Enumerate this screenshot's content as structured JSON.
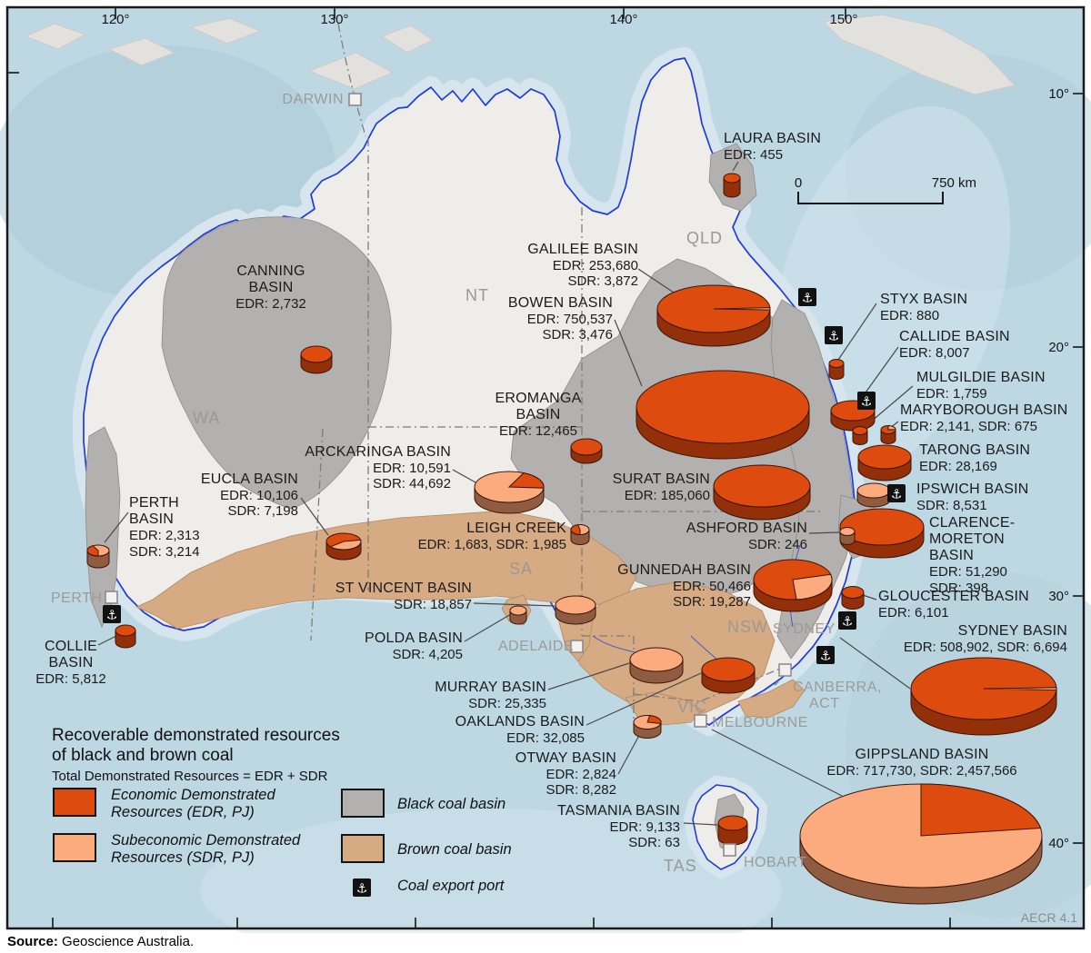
{
  "page": {
    "source_label": "Source:",
    "source_text": " Geoscience Australia.",
    "figure_ref": "AECR 4.1"
  },
  "icons": {
    "anchor": "⚓"
  },
  "colors": {
    "edr": "#dd4b0e",
    "edr_side": "#932f09",
    "sdr": "#fbab7e",
    "sdr_side": "#8f5b41",
    "pie_outline": "#3a1606",
    "black_coal": "#b3b1b0",
    "brown_coal": "#d6aa82",
    "land": "#efede9",
    "ocean": "#bed8e3",
    "coastline": "#1f3cd8"
  },
  "graticule": {
    "lon1": "120°",
    "lon2": "130°",
    "lon3": "140°",
    "lon4": "150°",
    "lat1": "10°",
    "lat2": "20°",
    "lat3": "30°",
    "lat4": "40°"
  },
  "scalebar": {
    "zero": "0",
    "max": "750 km"
  },
  "legend": {
    "title_line1": "Recoverable demonstrated resources",
    "title_line2": "of black and brown coal",
    "subtitle": "Total Demonstrated Resources = EDR + SDR",
    "edr_line1": "Economic Demonstrated",
    "edr_line2": "Resources (EDR, PJ)",
    "sdr_line1": "Subeconomic Demonstrated",
    "sdr_line2": "Resources (SDR, PJ)",
    "black_label": "Black coal basin",
    "brown_label": "Brown coal basin",
    "port_label": "Coal export port"
  },
  "states": {
    "wa": "WA",
    "nt": "NT",
    "qld": "QLD",
    "sa": "SA",
    "nsw": "NSW",
    "vic": "VIC",
    "tas": "TAS"
  },
  "cities": {
    "darwin": "DARWIN",
    "perth": "PERTH",
    "adelaide": "ADELAIDE",
    "sydney": "SYDNEY",
    "melbourne": "MELBOURNE",
    "hobart": "HOBART",
    "canberra_line1": "CANBERRA,",
    "canberra_line2": "ACT"
  },
  "basins": {
    "laura": {
      "name": "LAURA BASIN",
      "v1": "EDR: 455",
      "edr": 455,
      "sdr": 0
    },
    "canning": {
      "name": "CANNING BASIN",
      "v1": "EDR: 2,732",
      "edr": 2732,
      "sdr": 0
    },
    "galilee": {
      "name": "GALILEE BASIN",
      "v1": "EDR: 253,680",
      "v2": "SDR: 3,872",
      "edr": 253680,
      "sdr": 3872
    },
    "bowen": {
      "name": "BOWEN BASIN",
      "v1": "EDR: 750,537",
      "v2": "SDR: 3,476",
      "edr": 750537,
      "sdr": 3476
    },
    "styx": {
      "name": "STYX BASIN",
      "v1": "EDR: 880",
      "edr": 880,
      "sdr": 0
    },
    "callide": {
      "name": "CALLIDE BASIN",
      "v1": "EDR: 8,007",
      "edr": 8007,
      "sdr": 0
    },
    "mulgildie": {
      "name": "MULGILDIE BASIN",
      "v1": "EDR: 1,759",
      "edr": 1759,
      "sdr": 0
    },
    "maryborough": {
      "name": "MARYBOROUGH BASIN",
      "v1": "EDR: 2,141, SDR: 675",
      "edr": 2141,
      "sdr": 675
    },
    "tarong": {
      "name": "TARONG BASIN",
      "v1": "EDR: 28,169",
      "edr": 28169,
      "sdr": 0
    },
    "ipswich": {
      "name": "IPSWICH BASIN",
      "v1": "SDR: 8,531",
      "edr": 0,
      "sdr": 8531
    },
    "clarence": {
      "name": "CLARENCE-MORETON BASIN",
      "v1": "EDR: 51,290",
      "v2": "SDR: 398",
      "edr": 51290,
      "sdr": 398
    },
    "gloucester": {
      "name": "GLOUCESTER BASIN",
      "v1": "EDR: 6,101",
      "edr": 6101,
      "sdr": 0
    },
    "sydney": {
      "name": "SYDNEY BASIN",
      "v1": "EDR: 508,902, SDR: 6,694",
      "edr": 508902,
      "sdr": 6694
    },
    "eromanga": {
      "name": "EROMANGA BASIN",
      "v1": "EDR: 12,465",
      "edr": 12465,
      "sdr": 0
    },
    "surat": {
      "name": "SURAT BASIN",
      "v1": "EDR: 185,060",
      "edr": 185060,
      "sdr": 0
    },
    "ashford": {
      "name": "ASHFORD BASIN",
      "v1": "SDR: 246",
      "edr": 0,
      "sdr": 246
    },
    "gunnedah": {
      "name": "GUNNEDAH BASIN",
      "v1": "EDR: 50,466",
      "v2": "SDR: 19,287",
      "edr": 50466,
      "sdr": 19287
    },
    "arckaringa": {
      "name": "ARCKARINGA BASIN",
      "v1": "EDR: 10,591",
      "v2": "SDR: 44,692",
      "edr": 10591,
      "sdr": 44692
    },
    "eucla": {
      "name": "EUCLA BASIN",
      "v1": "EDR: 10,106",
      "v2": "SDR: 7,198",
      "edr": 10106,
      "sdr": 7198
    },
    "perth": {
      "name": "PERTH BASIN",
      "v1": "EDR: 2,313",
      "v2": "SDR: 3,214",
      "edr": 2313,
      "sdr": 3214
    },
    "collie": {
      "name": "COLLIE BASIN",
      "v1": "EDR: 5,812",
      "edr": 5812,
      "sdr": 0
    },
    "leigh": {
      "name": "LEIGH CREEK",
      "v1": "EDR: 1,683, SDR: 1,985",
      "edr": 1683,
      "sdr": 1985
    },
    "stvincent": {
      "name": "ST VINCENT BASIN",
      "v1": "SDR: 18,857",
      "edr": 0,
      "sdr": 18857
    },
    "polda": {
      "name": "POLDA BASIN",
      "v1": "SDR: 4,205",
      "edr": 0,
      "sdr": 4205
    },
    "murray": {
      "name": "MURRAY BASIN",
      "v1": "SDR: 25,335",
      "edr": 0,
      "sdr": 25335
    },
    "oaklands": {
      "name": "OAKLANDS BASIN",
      "v1": "EDR: 32,085",
      "edr": 32085,
      "sdr": 0
    },
    "otway": {
      "name": "OTWAY BASIN",
      "v1": "EDR: 2,824",
      "v2": "SDR: 8,282",
      "edr": 2824,
      "sdr": 8282
    },
    "tasmania": {
      "name": "TASMANIA BASIN",
      "v1": "EDR: 9,133",
      "v2": "SDR: 63",
      "edr": 9133,
      "sdr": 63
    },
    "gippsland": {
      "name": "GIPPSLAND BASIN",
      "v1": "EDR: 717,730, SDR: 2,457,566",
      "edr": 717730,
      "sdr": 2457566
    }
  }
}
